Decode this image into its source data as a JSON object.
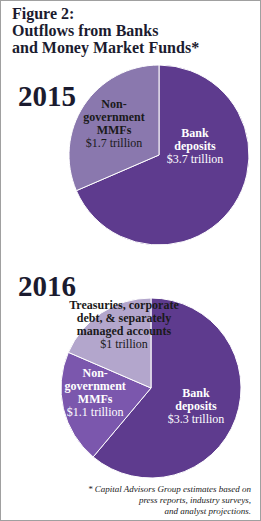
{
  "title": [
    "Figure 2:",
    "Outflows from Banks",
    "and Money Market Funds*"
  ],
  "note": [
    "* Capital Advisors Group estimates based on",
    "press reports, industry surveys,",
    "and analyst projections."
  ],
  "chart_data": [
    {
      "type": "pie",
      "title": "2015",
      "categories": [
        "Bank deposits",
        "Non-government MMFs"
      ],
      "values": [
        3.7,
        1.7
      ],
      "value_labels": [
        "$3.7 trillion",
        "$1.7 trillion"
      ],
      "colors": [
        "#5e3b8e",
        "#8a78ae"
      ],
      "data_labels": true
    },
    {
      "type": "pie",
      "title": "2016",
      "categories": [
        "Bank deposits",
        "Non-government MMFs",
        "Treasuries, corporate debt, & separately managed accounts"
      ],
      "values": [
        3.3,
        1.1,
        1
      ],
      "value_labels": [
        "$3.3 trillion",
        "$1.1 trillion",
        "$1 trillion"
      ],
      "colors": [
        "#5e3b8e",
        "#7b57ad",
        "#b3a6cc"
      ],
      "data_labels": true
    }
  ]
}
